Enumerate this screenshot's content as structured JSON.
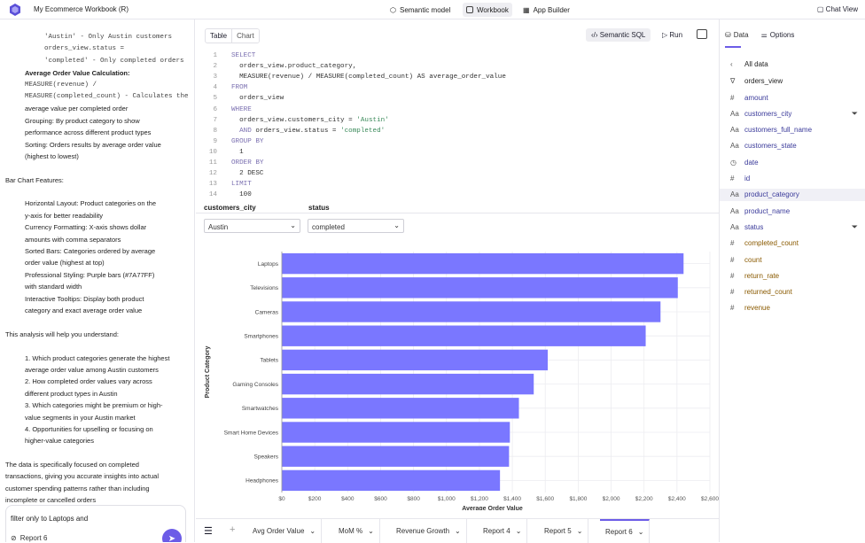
{
  "topbar": {
    "title": "My Ecommerce Workbook (R)",
    "nav": [
      "Semantic model",
      "Workbook",
      "App Builder"
    ],
    "chat_view": "Chat View"
  },
  "chat": {
    "lines": [
      {
        "t": "'Austin' - Only Austin customers",
        "cls": "indent2 mono"
      },
      {
        "t": "orders_view.status =",
        "cls": "indent2 circ bul mono"
      },
      {
        "t": "'completed' - Only completed orders",
        "cls": "indent2 mono"
      },
      {
        "t": "Average Order Value Calculation:",
        "cls": "indent1 bul b"
      },
      {
        "t": "MEASURE(revenue) /",
        "cls": "indent1 mono"
      },
      {
        "t": "MEASURE(completed_count) - Calculates the",
        "cls": "indent1 mono"
      },
      {
        "t": "average value per completed order",
        "cls": "indent1"
      },
      {
        "t": "Grouping: By product category to show",
        "cls": "indent1 bul"
      },
      {
        "t": "performance across different product types",
        "cls": "indent1"
      },
      {
        "t": "Sorting: Orders results by average order value",
        "cls": "indent1 bul"
      },
      {
        "t": "(highest to lowest)",
        "cls": "indent1"
      },
      {
        "t": "",
        "cls": ""
      },
      {
        "t": "Bar Chart Features:",
        "cls": ""
      },
      {
        "t": "",
        "cls": ""
      },
      {
        "t": "Horizontal Layout: Product categories on the",
        "cls": "indent1 bul"
      },
      {
        "t": "y-axis for better readability",
        "cls": "indent1"
      },
      {
        "t": "Currency Formatting: X-axis shows dollar",
        "cls": "indent1 bul"
      },
      {
        "t": "amounts with comma separators",
        "cls": "indent1"
      },
      {
        "t": "Sorted Bars: Categories ordered by average",
        "cls": "indent1 bul"
      },
      {
        "t": "order value (highest at top)",
        "cls": "indent1"
      },
      {
        "t": "Professional Styling: Purple bars (#7A77FF)",
        "cls": "indent1 bul"
      },
      {
        "t": "with standard width",
        "cls": "indent1"
      },
      {
        "t": "Interactive Tooltips: Display both product",
        "cls": "indent1 bul"
      },
      {
        "t": "category and exact average order value",
        "cls": "indent1"
      },
      {
        "t": "",
        "cls": ""
      },
      {
        "t": "This analysis will help you understand:",
        "cls": ""
      },
      {
        "t": "",
        "cls": ""
      },
      {
        "t": "1. Which product categories generate the highest",
        "cls": "indent1"
      },
      {
        "t": "average order value among Austin customers",
        "cls": "indent1"
      },
      {
        "t": "2. How completed order values vary across",
        "cls": "indent1"
      },
      {
        "t": "different product types in Austin",
        "cls": "indent1"
      },
      {
        "t": "3. Which categories might be premium or high-",
        "cls": "indent1"
      },
      {
        "t": "value segments in your Austin market",
        "cls": "indent1"
      },
      {
        "t": "4. Opportunities for upselling or focusing on",
        "cls": "indent1"
      },
      {
        "t": "higher-value categories",
        "cls": "indent1"
      },
      {
        "t": "",
        "cls": ""
      },
      {
        "t": "The data is specifically focused on completed",
        "cls": ""
      },
      {
        "t": "transactions, giving you accurate insights into actual",
        "cls": ""
      },
      {
        "t": "customer spending patterns rather than including",
        "cls": ""
      },
      {
        "t": "incomplete or cancelled orders",
        "cls": ""
      }
    ],
    "input_value": "filter only to Laptops and",
    "report_chip": "Report 6"
  },
  "editor": {
    "tab_table": "Table",
    "tab_chart": "Chart",
    "semantic_sql": "Semantic SQL",
    "run": "Run",
    "code": [
      [
        {
          "k": "kw",
          "t": "SELECT"
        }
      ],
      [
        {
          "k": "fn",
          "t": "  orders_view.product_category,"
        }
      ],
      [
        {
          "k": "fn",
          "t": "  MEASURE(revenue) / MEASURE(completed_count) AS average_order_value"
        }
      ],
      [
        {
          "k": "kw",
          "t": "FROM"
        }
      ],
      [
        {
          "k": "fn",
          "t": "  orders_view"
        }
      ],
      [
        {
          "k": "kw",
          "t": "WHERE"
        }
      ],
      [
        {
          "k": "fn",
          "t": "  orders_view.customers_city = "
        },
        {
          "k": "str",
          "t": "'Austin'"
        }
      ],
      [
        {
          "k": "kw",
          "t": "  AND"
        },
        {
          "k": "fn",
          "t": " orders_view.status = "
        },
        {
          "k": "str",
          "t": "'completed'"
        }
      ],
      [
        {
          "k": "kw",
          "t": "GROUP BY"
        }
      ],
      [
        {
          "k": "fn",
          "t": "  1"
        }
      ],
      [
        {
          "k": "kw",
          "t": "ORDER BY"
        }
      ],
      [
        {
          "k": "fn",
          "t": "  2 DESC"
        }
      ],
      [
        {
          "k": "kw",
          "t": "LIMIT"
        }
      ],
      [
        {
          "k": "fn",
          "t": "  100"
        }
      ]
    ]
  },
  "filters": {
    "city_label": "customers_city",
    "city_value": "Austin",
    "status_label": "status",
    "status_value": "completed"
  },
  "chart_data": {
    "type": "bar",
    "orientation": "horizontal",
    "categories": [
      "Laptops",
      "Televisions",
      "Cameras",
      "Smartphones",
      "Tablets",
      "Gaming Consoles",
      "Smartwatches",
      "Smart Home Devices",
      "Speakers",
      "Headphones"
    ],
    "values": [
      2440,
      2405,
      2300,
      2210,
      1615,
      1530,
      1440,
      1385,
      1380,
      1325
    ],
    "xlabel": "Average Order Value",
    "ylabel": "Product Category",
    "xlim": [
      0,
      2600
    ],
    "xticks": [
      "$0",
      "$200",
      "$400",
      "$600",
      "$800",
      "$1,000",
      "$1,200",
      "$1,400",
      "$1,600",
      "$1,800",
      "$2,000",
      "$2,200",
      "$2,400",
      "$2,600"
    ],
    "color": "#7A77FF",
    "grid": true
  },
  "bottom_tabs": [
    "Avg Order Value",
    "MoM %",
    "Revenue Growth",
    "Report 4",
    "Report 5",
    "Report 6"
  ],
  "right_panel": {
    "tab_data": "Data",
    "tab_options": "Options",
    "all_data": "All data",
    "view": "orders_view",
    "fields": [
      {
        "icon": "#",
        "name": "amount",
        "type": "dim"
      },
      {
        "icon": "Aa",
        "name": "customers_city",
        "type": "dim",
        "filter": true
      },
      {
        "icon": "Aa",
        "name": "customers_full_name",
        "type": "dim"
      },
      {
        "icon": "Aa",
        "name": "customers_state",
        "type": "dim"
      },
      {
        "icon": "◷",
        "name": "date",
        "type": "dim"
      },
      {
        "icon": "#",
        "name": "id",
        "type": "dim"
      },
      {
        "icon": "Aa",
        "name": "product_category",
        "type": "dim",
        "selected": true
      },
      {
        "icon": "Aa",
        "name": "product_name",
        "type": "dim"
      },
      {
        "icon": "Aa",
        "name": "status",
        "type": "dim",
        "filter": true
      },
      {
        "icon": "#",
        "name": "completed_count",
        "type": "measure"
      },
      {
        "icon": "#",
        "name": "count",
        "type": "measure"
      },
      {
        "icon": "#",
        "name": "return_rate",
        "type": "measure"
      },
      {
        "icon": "#",
        "name": "returned_count",
        "type": "measure"
      },
      {
        "icon": "#",
        "name": "revenue",
        "type": "measure"
      }
    ]
  }
}
